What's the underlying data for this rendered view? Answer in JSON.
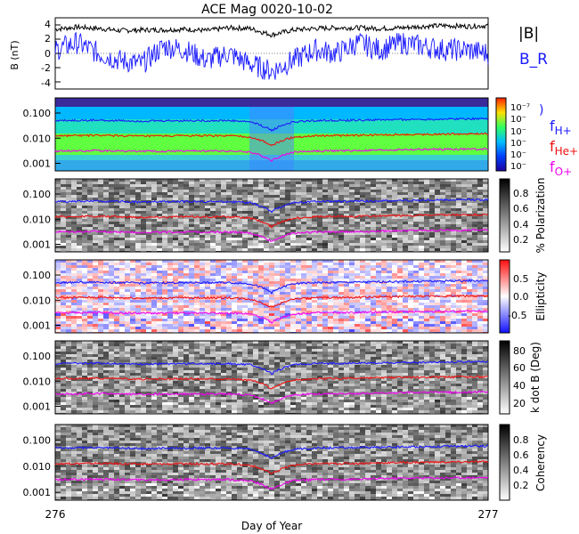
{
  "title": "ACE Mag 0020-10-02",
  "xlabel": "Day of Year",
  "x_ticks": [
    "276",
    "277"
  ],
  "colors": {
    "b_total": "#000000",
    "b_r": "#1a1aff",
    "h": "#1a1aff",
    "he": "#ee1111",
    "o": "#ee00ee"
  },
  "panel1": {
    "ylabel": "B (nT)",
    "yticks": [
      "4",
      "2",
      "0",
      "-2",
      "-4"
    ],
    "legend": [
      "|B|",
      "B_R"
    ]
  },
  "freq_yticks": [
    "0.100",
    "0.010",
    "0.001"
  ],
  "panel2": {
    "colorbar_ticks": [
      "10⁻⁷",
      "10⁻",
      "10⁻",
      "10⁻",
      "10⁻",
      "10⁻"
    ],
    "legend": [
      "H+",
      "He+",
      "O+"
    ]
  },
  "panel3": {
    "colorbar_label": "% Polarization",
    "colorbar_ticks": [
      "0.8",
      "0.6",
      "0.4",
      "0.2"
    ]
  },
  "panel4": {
    "colorbar_label": "Ellipticity",
    "colorbar_ticks": [
      "0.5",
      "0.0",
      "-0.5"
    ]
  },
  "panel5": {
    "colorbar_label": "k dot B (Deg)",
    "colorbar_ticks": [
      "80",
      "60",
      "40",
      "20"
    ]
  },
  "panel6": {
    "colorbar_label": "Coherency",
    "colorbar_ticks": [
      "0.8",
      "0.6",
      "0.4",
      "0.2"
    ]
  },
  "chart_data": [
    {
      "type": "line",
      "title": "ACE Mag 0020-10-02",
      "xlim": [
        276,
        277
      ],
      "ylim": [
        -5,
        5
      ],
      "ylabel": "B (nT)",
      "series": [
        {
          "name": "|B|",
          "x": [
            276.0,
            276.05,
            276.1,
            276.15,
            276.2,
            276.25,
            276.3,
            276.35,
            276.4,
            276.45,
            276.5,
            276.55,
            276.6,
            276.65,
            276.7,
            276.75,
            276.8,
            276.85,
            276.9,
            276.95,
            277.0
          ],
          "values": [
            3.4,
            3.7,
            3.5,
            3.2,
            3.3,
            3.3,
            3.4,
            3.2,
            3.6,
            3.5,
            2.6,
            3.3,
            3.5,
            3.6,
            3.6,
            3.5,
            3.6,
            3.8,
            3.9,
            3.8,
            3.9
          ]
        },
        {
          "name": "B_R",
          "x": [
            276.0,
            276.05,
            276.1,
            276.15,
            276.2,
            276.25,
            276.3,
            276.35,
            276.4,
            276.45,
            276.5,
            276.55,
            276.6,
            276.65,
            276.7,
            276.75,
            276.8,
            276.85,
            276.9,
            276.95,
            277.0
          ],
          "values": [
            0.5,
            1.5,
            0.0,
            -1.0,
            -1.5,
            1.0,
            0.5,
            -1.0,
            0.0,
            -1.5,
            -2.5,
            -1.0,
            0.5,
            0.0,
            1.5,
            0.5,
            1.5,
            1.0,
            0.5,
            0.5,
            0.0
          ]
        }
      ]
    },
    {
      "type": "line",
      "ylog": true,
      "ylim": [
        0.0005,
        0.4
      ],
      "series": [
        {
          "name": "H+",
          "x": [
            276.0,
            276.1,
            276.2,
            276.3,
            276.4,
            276.45,
            276.48,
            276.5,
            276.52,
            276.55,
            276.6,
            276.7,
            276.8,
            276.9,
            277.0
          ],
          "values": [
            0.05,
            0.052,
            0.048,
            0.05,
            0.05,
            0.045,
            0.03,
            0.02,
            0.03,
            0.045,
            0.05,
            0.052,
            0.055,
            0.058,
            0.06
          ]
        },
        {
          "name": "He+",
          "x": [
            276.0,
            276.1,
            276.2,
            276.3,
            276.4,
            276.45,
            276.48,
            276.5,
            276.52,
            276.55,
            276.6,
            276.7,
            276.8,
            276.9,
            277.0
          ],
          "values": [
            0.0125,
            0.013,
            0.012,
            0.0125,
            0.0125,
            0.011,
            0.0075,
            0.005,
            0.0075,
            0.011,
            0.0125,
            0.013,
            0.014,
            0.0145,
            0.015
          ]
        },
        {
          "name": "O+",
          "x": [
            276.0,
            276.1,
            276.2,
            276.3,
            276.4,
            276.45,
            276.48,
            276.5,
            276.52,
            276.55,
            276.6,
            276.7,
            276.8,
            276.9,
            277.0
          ],
          "values": [
            0.0031,
            0.0032,
            0.003,
            0.0031,
            0.0031,
            0.0028,
            0.0019,
            0.0013,
            0.0019,
            0.0028,
            0.0031,
            0.0032,
            0.0035,
            0.0036,
            0.0037
          ]
        }
      ]
    }
  ]
}
